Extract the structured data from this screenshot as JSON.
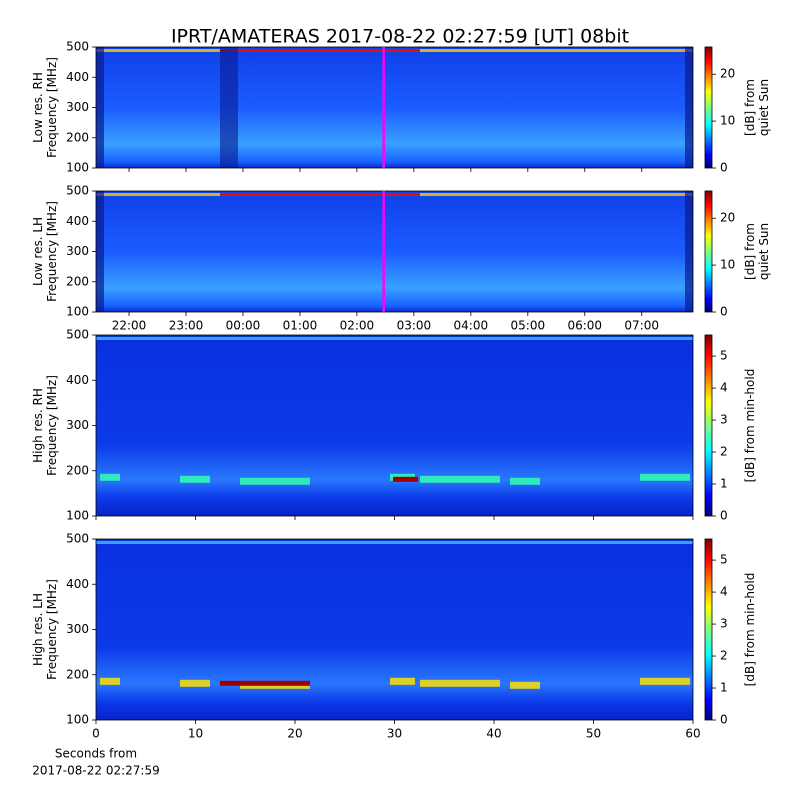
{
  "title": "IPRT/AMATERAS 2017-08-22 02:27:59 [UT]   08bit",
  "chart_data": [
    {
      "type": "heatmap",
      "ylabel": [
        "Low res. RH",
        "Frequency [MHz]"
      ],
      "ylim": [
        100,
        500
      ],
      "yticks": [
        100,
        200,
        300,
        400,
        500
      ],
      "xlim": [
        21.42,
        31.9
      ],
      "xticks": [
        {
          "value": 22,
          "label": "22:00"
        },
        {
          "value": 23,
          "label": "23:00"
        },
        {
          "value": 24,
          "label": "00:00"
        },
        {
          "value": 25,
          "label": "01:00"
        },
        {
          "value": 26,
          "label": "02:00"
        },
        {
          "value": 27,
          "label": "03:00"
        },
        {
          "value": 28,
          "label": "04:00"
        },
        {
          "value": 29,
          "label": "05:00"
        },
        {
          "value": 30,
          "label": "06:00"
        },
        {
          "value": 31,
          "label": "07:00"
        }
      ],
      "show_xtick_labels": false,
      "marker_x": 26.47,
      "marker_color": "#ff00ff",
      "colormap": "jet",
      "zlim": [
        0,
        25.8
      ],
      "zticks": [
        0,
        10,
        20
      ],
      "zlabel": [
        "[dB] from",
        "quiet Sun"
      ]
    },
    {
      "type": "heatmap",
      "ylabel": [
        "Low res. LH",
        "Frequency [MHz]"
      ],
      "ylim": [
        100,
        500
      ],
      "yticks": [
        100,
        200,
        300,
        400,
        500
      ],
      "xlim": [
        21.42,
        31.9
      ],
      "xticks": [
        {
          "value": 22,
          "label": "22:00"
        },
        {
          "value": 23,
          "label": "23:00"
        },
        {
          "value": 24,
          "label": "00:00"
        },
        {
          "value": 25,
          "label": "01:00"
        },
        {
          "value": 26,
          "label": "02:00"
        },
        {
          "value": 27,
          "label": "03:00"
        },
        {
          "value": 28,
          "label": "04:00"
        },
        {
          "value": 29,
          "label": "05:00"
        },
        {
          "value": 30,
          "label": "06:00"
        },
        {
          "value": 31,
          "label": "07:00"
        }
      ],
      "show_xtick_labels": true,
      "marker_x": 26.47,
      "marker_color": "#ff00ff",
      "colormap": "jet",
      "zlim": [
        0,
        25.8
      ],
      "zticks": [
        0,
        10,
        20
      ],
      "zlabel": [
        "[dB] from",
        "quiet Sun"
      ]
    },
    {
      "type": "heatmap",
      "ylabel": [
        "High res. RH",
        "Frequency [MHz]"
      ],
      "ylim": [
        100,
        500
      ],
      "yticks": [
        100,
        200,
        300,
        400,
        500
      ],
      "xlim": [
        0,
        60
      ],
      "xticks": [
        0,
        10,
        20,
        30,
        40,
        50,
        60
      ],
      "show_xtick_labels": false,
      "colormap": "jet",
      "zlim": [
        0,
        5.66
      ],
      "zticks": [
        0,
        1,
        2,
        3,
        4,
        5
      ],
      "zlabel": [
        "[dB] from min-hold"
      ]
    },
    {
      "type": "heatmap",
      "ylabel": [
        "High res. LH",
        "Frequency [MHz]"
      ],
      "ylim": [
        100,
        500
      ],
      "yticks": [
        100,
        200,
        300,
        400,
        500
      ],
      "xlim": [
        0,
        60
      ],
      "xticks": [
        0,
        10,
        20,
        30,
        40,
        50,
        60
      ],
      "show_xtick_labels": true,
      "xlabel": [
        "Seconds from",
        "2017-08-22 02:27:59"
      ],
      "colormap": "jet",
      "zlim": [
        0,
        5.66
      ],
      "zticks": [
        0,
        1,
        2,
        3,
        4,
        5
      ],
      "zlabel": [
        "[dB] from min-hold"
      ]
    }
  ]
}
